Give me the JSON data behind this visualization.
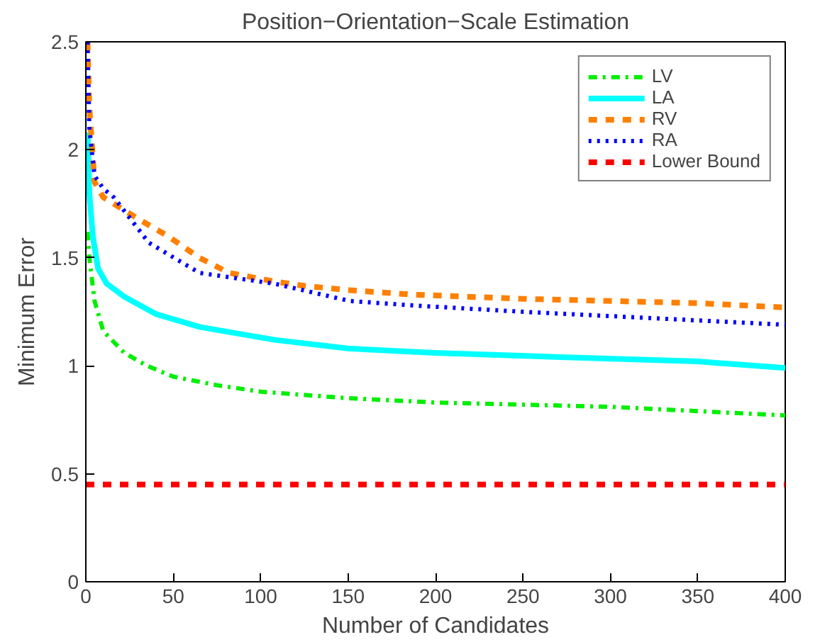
{
  "chart_data": {
    "type": "line",
    "title": "Position−Orientation−Scale Estimation",
    "xlabel": "Number of Candidates",
    "ylabel": "Minimum Error",
    "xlim": [
      0,
      400
    ],
    "ylim": [
      0,
      2.5
    ],
    "xticks": [
      0,
      50,
      100,
      150,
      200,
      250,
      300,
      350,
      400
    ],
    "yticks": [
      0,
      0.5,
      1,
      1.5,
      2,
      2.5
    ],
    "grid": false,
    "legend": "top right",
    "marker": "none",
    "series": [
      {
        "name": "LV",
        "color": "#00ee00",
        "line_style": "dashdot",
        "x": [
          1,
          2,
          5,
          10,
          22,
          35,
          50,
          75,
          100,
          150,
          200,
          250,
          300,
          350,
          400
        ],
        "values": [
          1.62,
          1.5,
          1.3,
          1.16,
          1.06,
          1.0,
          0.95,
          0.91,
          0.88,
          0.85,
          0.83,
          0.82,
          0.81,
          0.79,
          0.77
        ]
      },
      {
        "name": "LA",
        "color": "#00ffff",
        "line_style": "solid",
        "x": [
          1,
          2,
          4,
          7,
          12,
          22,
          40,
          65,
          108,
          150,
          200,
          272,
          350,
          400
        ],
        "values": [
          2.08,
          1.8,
          1.6,
          1.45,
          1.38,
          1.32,
          1.24,
          1.18,
          1.12,
          1.08,
          1.06,
          1.04,
          1.02,
          0.99
        ]
      },
      {
        "name": "RV",
        "color": "#ff8000",
        "line_style": "dashed",
        "x": [
          1,
          2,
          5,
          10,
          16,
          30,
          47,
          65,
          82,
          108,
          125,
          151,
          186,
          250,
          300,
          350,
          400
        ],
        "values": [
          2.5,
          2.2,
          1.85,
          1.78,
          1.75,
          1.68,
          1.6,
          1.5,
          1.43,
          1.39,
          1.37,
          1.35,
          1.33,
          1.31,
          1.3,
          1.29,
          1.27
        ]
      },
      {
        "name": "RA",
        "color": "#0000ff",
        "line_style": "dotted",
        "x": [
          1,
          2,
          5,
          10,
          16,
          36,
          65,
          108,
          151,
          186,
          250,
          300,
          350,
          400
        ],
        "values": [
          2.5,
          2.1,
          1.88,
          1.82,
          1.78,
          1.57,
          1.43,
          1.38,
          1.3,
          1.28,
          1.25,
          1.23,
          1.21,
          1.19
        ]
      },
      {
        "name": "Lower Bound",
        "color": "#ff0000",
        "line_style": "dashed",
        "x": [
          0,
          400
        ],
        "values": [
          0.45,
          0.45
        ]
      }
    ]
  }
}
